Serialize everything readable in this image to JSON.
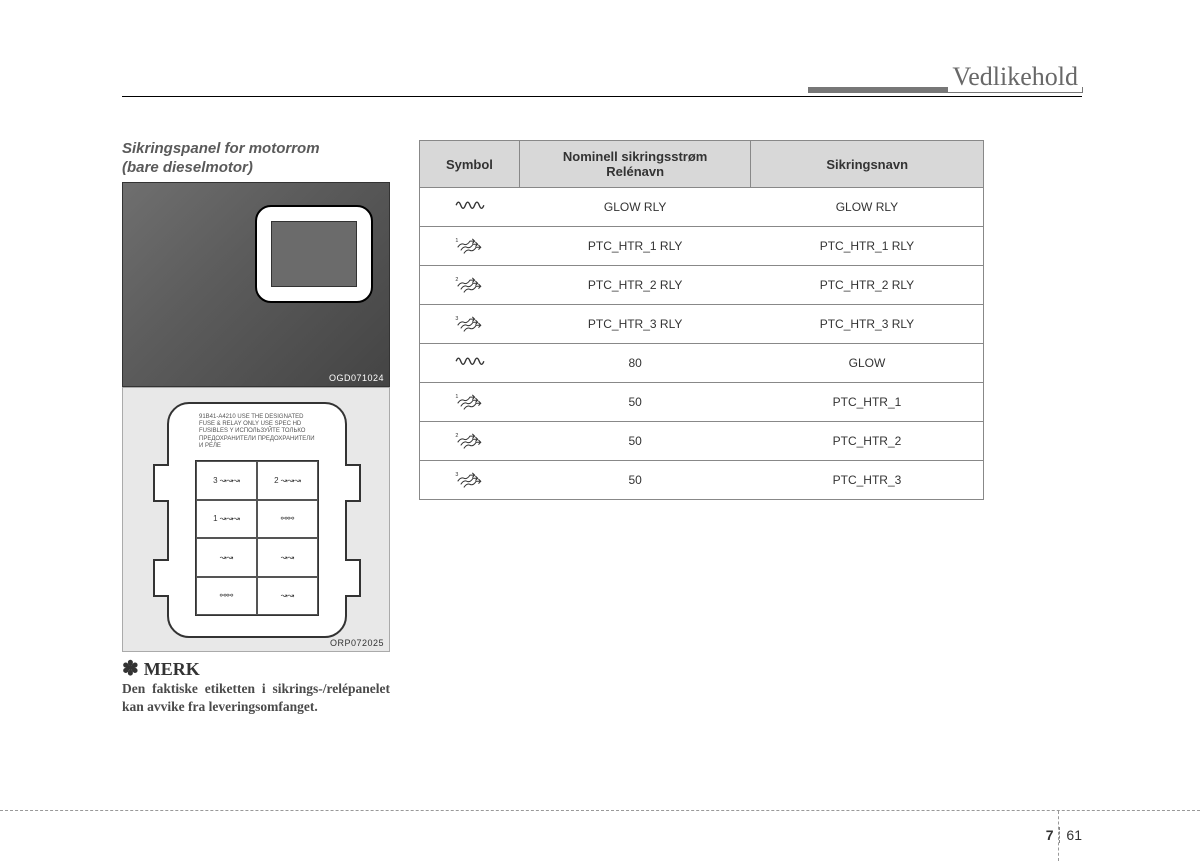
{
  "header": {
    "title": "Vedlikehold"
  },
  "section": {
    "title_line1": "Sikringspanel for motorrom",
    "title_line2": "(bare dieselmotor)"
  },
  "photo": {
    "code": "OGD071024"
  },
  "diagram": {
    "code": "ORP072025",
    "top_text": "91B41-A4210\nUSE THE DESIGNATED\nFUSE & RELAY ONLY\nUSE SPEC HD FUSIBLES Y\nИСПОЛЬЗУЙТЕ ТОЛЬКО ПРЕДОХРАНИТЕЛИ\nПРЕДОХРАНИТЕЛИ И РЕЛЕ"
  },
  "note": {
    "heading": "MERK",
    "body": "Den faktiske etiketten i sikrings-/relépanelet kan avvike fra leveringsomfanget."
  },
  "table": {
    "headers": {
      "symbol": "Symbol",
      "nominal": "Nominell sikringsstrøm Relénavn",
      "name": "Sikringsnavn"
    },
    "rows": [
      {
        "symbol": "coil",
        "nominal": "GLOW RLY",
        "name": "GLOW RLY"
      },
      {
        "symbol": "arrows1",
        "nominal": "PTC_HTR_1 RLY",
        "name": "PTC_HTR_1 RLY"
      },
      {
        "symbol": "arrows2",
        "nominal": "PTC_HTR_2 RLY",
        "name": "PTC_HTR_2 RLY"
      },
      {
        "symbol": "arrows3",
        "nominal": "PTC_HTR_3 RLY",
        "name": "PTC_HTR_3 RLY"
      },
      {
        "symbol": "coil",
        "nominal": "80",
        "name": "GLOW"
      },
      {
        "symbol": "arrows1",
        "nominal": "50",
        "name": "PTC_HTR_1"
      },
      {
        "symbol": "arrows2",
        "nominal": "50",
        "name": "PTC_HTR_2"
      },
      {
        "symbol": "arrows3",
        "nominal": "50",
        "name": "PTC_HTR_3"
      }
    ]
  },
  "footer": {
    "chapter": "7",
    "page": "61"
  }
}
